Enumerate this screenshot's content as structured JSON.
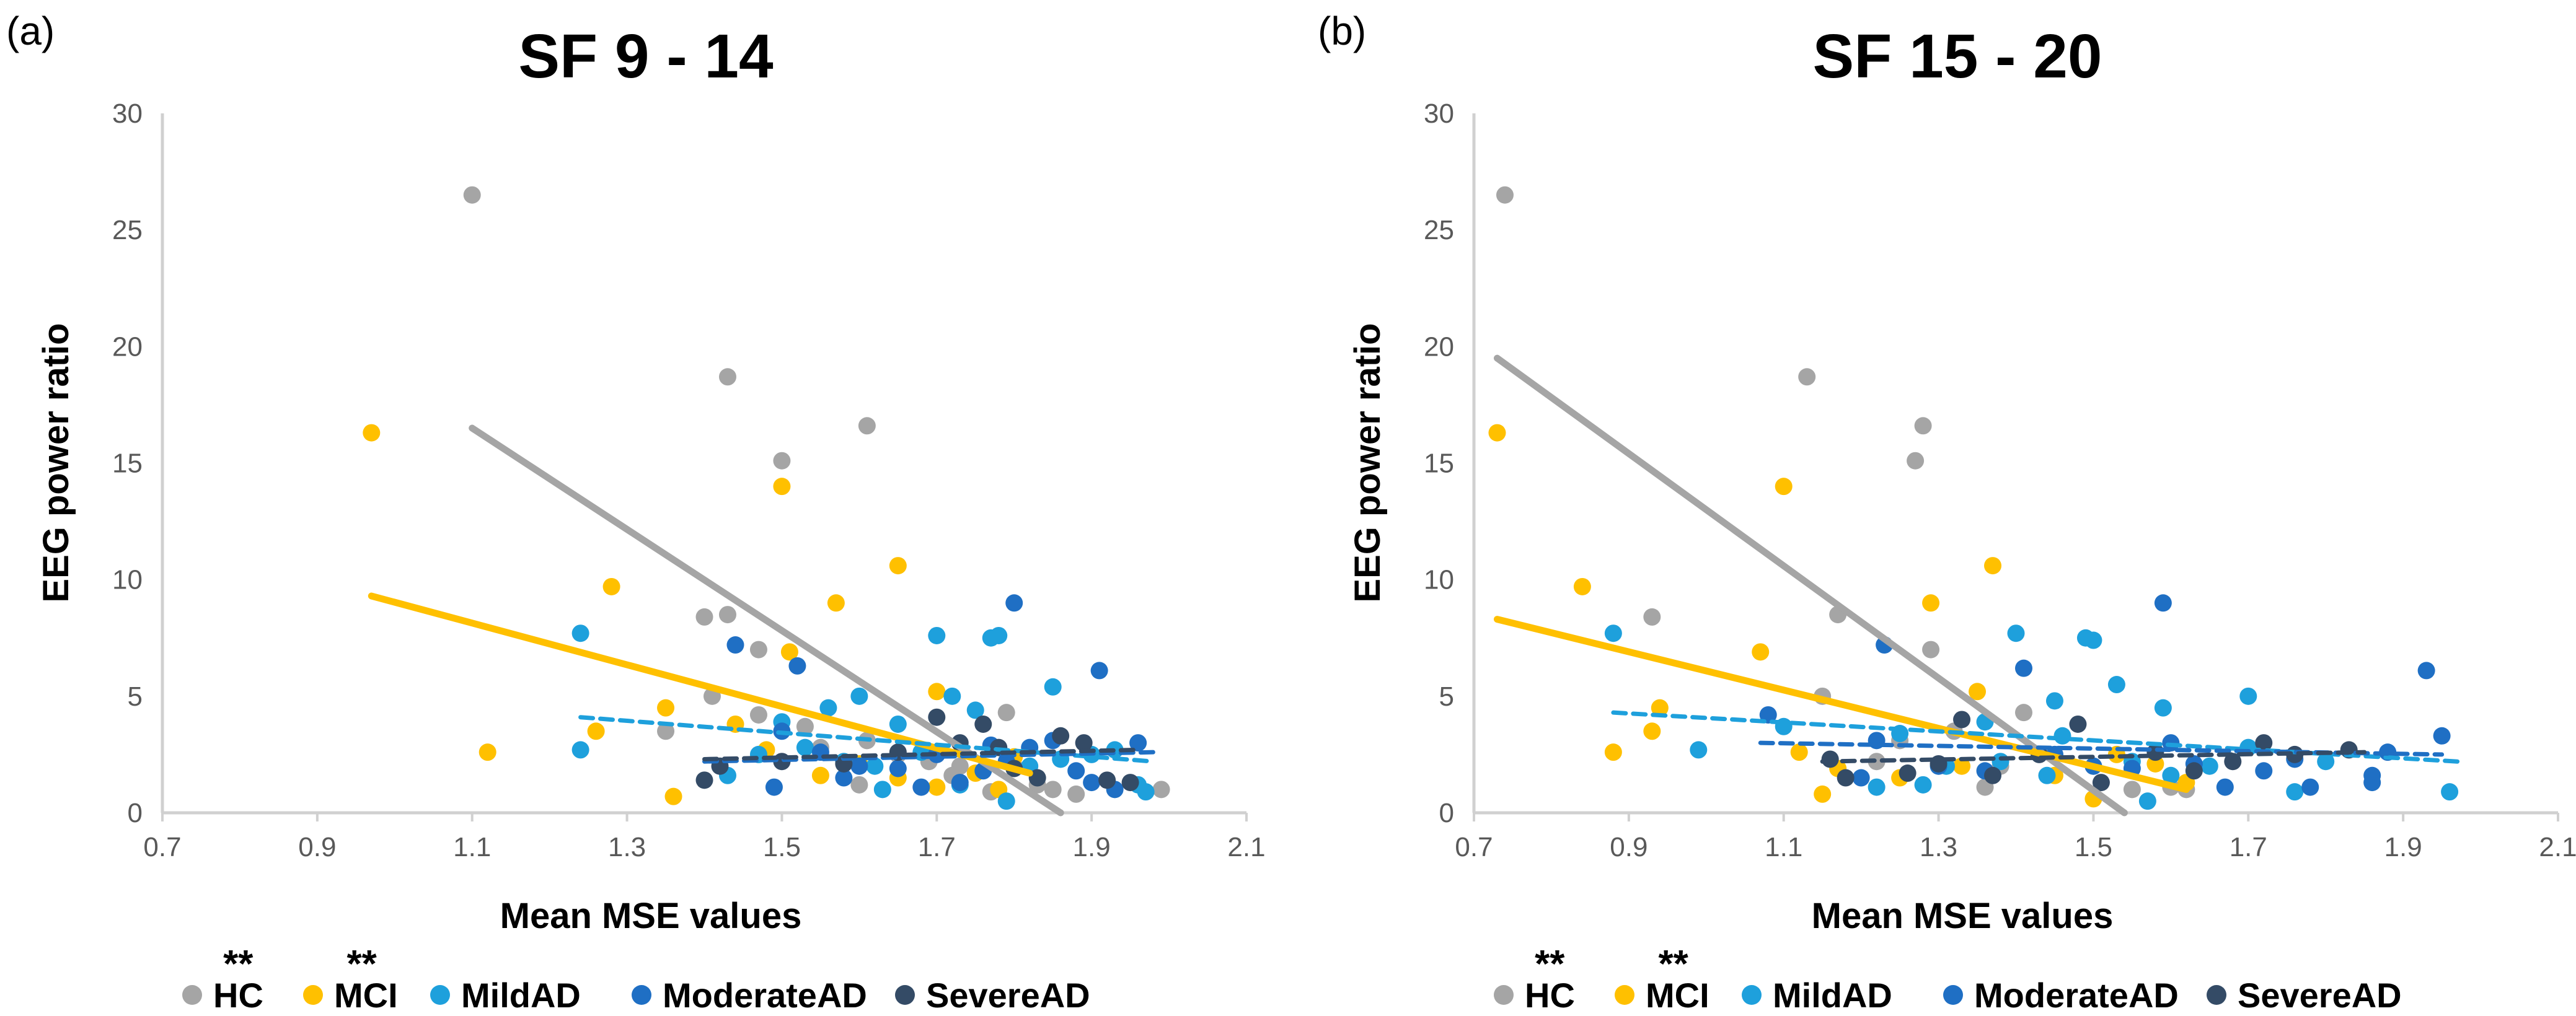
{
  "figure": {
    "significance_mark": "**",
    "legend": [
      {
        "name": "HC",
        "color": "#a5a5a5",
        "significant": true
      },
      {
        "name": "MCI",
        "color": "#ffc000",
        "significant": true
      },
      {
        "name": "MildAD",
        "color": "#1ea0dc",
        "significant": false
      },
      {
        "name": "ModerateAD",
        "color": "#1f6fc4",
        "significant": false
      },
      {
        "name": "SevereAD",
        "color": "#344b66",
        "significant": false
      }
    ]
  },
  "chart_data": [
    {
      "type": "scatter",
      "panel_label": "(a)",
      "title": "SF 9 - 14",
      "xlabel": "Mean MSE values",
      "ylabel": "EEG power ratio",
      "xlim": [
        0.7,
        2.1
      ],
      "ylim": [
        0,
        30
      ],
      "xticks": [
        "0.7",
        "0.9",
        "1.1",
        "1.3",
        "1.5",
        "1.7",
        "1.9",
        "2.1"
      ],
      "yticks": [
        "0",
        "5",
        "10",
        "15",
        "20",
        "25",
        "30"
      ],
      "series": [
        {
          "name": "HC",
          "color": "#a5a5a5",
          "points": [
            [
              1.1,
              26.5
            ],
            [
              1.43,
              18.7
            ],
            [
              1.5,
              15.1
            ],
            [
              1.61,
              16.6
            ],
            [
              1.4,
              8.4
            ],
            [
              1.43,
              8.5
            ],
            [
              1.47,
              7.0
            ],
            [
              1.41,
              5.0
            ],
            [
              1.35,
              3.5
            ],
            [
              1.47,
              4.2
            ],
            [
              1.53,
              3.7
            ],
            [
              1.55,
              2.8
            ],
            [
              1.61,
              3.1
            ],
            [
              1.65,
              2.5
            ],
            [
              1.69,
              2.2
            ],
            [
              1.73,
              2.0
            ],
            [
              1.77,
              0.9
            ],
            [
              1.79,
              4.3
            ],
            [
              1.8,
              2.0
            ],
            [
              1.83,
              1.2
            ],
            [
              1.85,
              1.0
            ],
            [
              1.88,
              0.8
            ],
            [
              1.99,
              1.0
            ],
            [
              1.6,
              1.2
            ],
            [
              1.72,
              1.6
            ]
          ],
          "trend": {
            "x1": 1.1,
            "y1": 16.5,
            "x2": 1.86,
            "y2": 0.0
          }
        },
        {
          "name": "MCI",
          "color": "#ffc000",
          "points": [
            [
              0.97,
              16.3
            ],
            [
              1.5,
              14.0
            ],
            [
              1.65,
              10.6
            ],
            [
              1.28,
              9.7
            ],
            [
              1.57,
              9.0
            ],
            [
              1.51,
              6.9
            ],
            [
              1.7,
              5.2
            ],
            [
              1.12,
              2.6
            ],
            [
              1.26,
              3.5
            ],
            [
              1.35,
              4.5
            ],
            [
              1.44,
              3.8
            ],
            [
              1.48,
              2.7
            ],
            [
              1.55,
              1.6
            ],
            [
              1.6,
              2.1
            ],
            [
              1.65,
              1.5
            ],
            [
              1.7,
              1.1
            ],
            [
              1.75,
              1.7
            ],
            [
              1.8,
              2.4
            ],
            [
              1.36,
              0.7
            ],
            [
              1.78,
              1.0
            ]
          ],
          "trend": {
            "x1": 0.97,
            "y1": 9.3,
            "x2": 1.82,
            "y2": 1.7
          }
        },
        {
          "name": "MildAD",
          "color": "#1ea0dc",
          "points": [
            [
              1.24,
              7.7
            ],
            [
              1.24,
              2.7
            ],
            [
              1.5,
              3.9
            ],
            [
              1.56,
              4.5
            ],
            [
              1.6,
              5.0
            ],
            [
              1.65,
              3.8
            ],
            [
              1.7,
              7.6
            ],
            [
              1.72,
              5.0
            ],
            [
              1.75,
              4.4
            ],
            [
              1.77,
              7.5
            ],
            [
              1.78,
              7.6
            ],
            [
              1.85,
              5.4
            ],
            [
              1.43,
              1.6
            ],
            [
              1.47,
              2.5
            ],
            [
              1.53,
              2.8
            ],
            [
              1.58,
              2.2
            ],
            [
              1.62,
              2.0
            ],
            [
              1.68,
              2.6
            ],
            [
              1.73,
              1.2
            ],
            [
              1.79,
              0.5
            ],
            [
              1.82,
              2.0
            ],
            [
              1.86,
              2.3
            ],
            [
              1.9,
              2.5
            ],
            [
              1.93,
              2.7
            ],
            [
              1.96,
              1.2
            ],
            [
              1.97,
              0.9
            ],
            [
              1.63,
              1.0
            ]
          ],
          "trend": {
            "x1": 1.24,
            "y1": 4.1,
            "x2": 1.98,
            "y2": 2.2
          },
          "dashed": true
        },
        {
          "name": "ModerateAD",
          "color": "#1f6fc4",
          "points": [
            [
              1.8,
              9.0
            ],
            [
              1.44,
              7.2
            ],
            [
              1.52,
              6.3
            ],
            [
              1.91,
              6.1
            ],
            [
              1.5,
              3.5
            ],
            [
              1.55,
              2.6
            ],
            [
              1.6,
              2.0
            ],
            [
              1.65,
              1.9
            ],
            [
              1.7,
              2.5
            ],
            [
              1.73,
              1.3
            ],
            [
              1.76,
              1.8
            ],
            [
              1.79,
              2.2
            ],
            [
              1.82,
              2.8
            ],
            [
              1.85,
              3.1
            ],
            [
              1.88,
              1.8
            ],
            [
              1.9,
              1.3
            ],
            [
              1.93,
              1.0
            ],
            [
              1.96,
              3.0
            ],
            [
              1.58,
              1.5
            ],
            [
              1.68,
              1.1
            ],
            [
              1.77,
              2.9
            ],
            [
              1.49,
              1.1
            ]
          ],
          "trend": {
            "x1": 1.4,
            "y1": 2.2,
            "x2": 1.98,
            "y2": 2.6
          },
          "dashed": true
        },
        {
          "name": "SevereAD",
          "color": "#344b66",
          "points": [
            [
              1.42,
              2.0
            ],
            [
              1.5,
              2.2
            ],
            [
              1.58,
              2.1
            ],
            [
              1.65,
              2.6
            ],
            [
              1.7,
              4.1
            ],
            [
              1.73,
              3.0
            ],
            [
              1.76,
              3.8
            ],
            [
              1.78,
              2.8
            ],
            [
              1.8,
              1.9
            ],
            [
              1.83,
              1.5
            ],
            [
              1.86,
              3.3
            ],
            [
              1.89,
              3.0
            ],
            [
              1.92,
              1.4
            ],
            [
              1.95,
              1.3
            ],
            [
              1.4,
              1.4
            ]
          ],
          "trend": {
            "x1": 1.4,
            "y1": 2.3,
            "x2": 1.96,
            "y2": 2.7
          },
          "dashed": true
        }
      ]
    },
    {
      "type": "scatter",
      "panel_label": "(b)",
      "title": "SF 15 - 20",
      "xlabel": "Mean MSE values",
      "ylabel": "EEG power ratio",
      "xlim": [
        0.7,
        2.1
      ],
      "ylim": [
        0,
        30
      ],
      "xticks": [
        "0.7",
        "0.9",
        "1.1",
        "1.3",
        "1.5",
        "1.7",
        "1.9",
        "2.1"
      ],
      "yticks": [
        "0",
        "5",
        "10",
        "15",
        "20",
        "25",
        "30"
      ],
      "series": [
        {
          "name": "HC",
          "color": "#a5a5a5",
          "points": [
            [
              0.74,
              26.5
            ],
            [
              1.13,
              18.7
            ],
            [
              1.28,
              16.6
            ],
            [
              1.27,
              15.1
            ],
            [
              0.93,
              8.4
            ],
            [
              1.17,
              8.5
            ],
            [
              1.29,
              7.0
            ],
            [
              1.15,
              5.0
            ],
            [
              1.41,
              4.3
            ],
            [
              1.32,
              3.5
            ],
            [
              1.25,
              3.1
            ],
            [
              1.36,
              1.1
            ],
            [
              1.45,
              2.5
            ],
            [
              1.5,
              2.0
            ],
            [
              1.55,
              1.0
            ],
            [
              1.6,
              1.1
            ],
            [
              1.62,
              1.0
            ],
            [
              1.22,
              2.2
            ],
            [
              1.38,
              2.0
            ]
          ],
          "trend": {
            "x1": 0.73,
            "y1": 19.5,
            "x2": 1.54,
            "y2": 0.0
          }
        },
        {
          "name": "MCI",
          "color": "#ffc000",
          "points": [
            [
              0.73,
              16.3
            ],
            [
              1.1,
              14.0
            ],
            [
              1.37,
              10.6
            ],
            [
              0.84,
              9.7
            ],
            [
              1.29,
              9.0
            ],
            [
              1.07,
              6.9
            ],
            [
              1.35,
              5.2
            ],
            [
              0.88,
              2.6
            ],
            [
              0.94,
              4.5
            ],
            [
              0.93,
              3.5
            ],
            [
              1.12,
              2.6
            ],
            [
              1.17,
              1.9
            ],
            [
              1.25,
              1.5
            ],
            [
              1.33,
              2.0
            ],
            [
              1.45,
              1.6
            ],
            [
              1.5,
              0.6
            ],
            [
              1.53,
              2.5
            ],
            [
              1.58,
              2.1
            ],
            [
              1.15,
              0.8
            ],
            [
              1.62,
              1.3
            ]
          ],
          "trend": {
            "x1": 0.73,
            "y1": 8.3,
            "x2": 1.62,
            "y2": 1.0
          }
        },
        {
          "name": "MildAD",
          "color": "#1ea0dc",
          "points": [
            [
              0.88,
              7.7
            ],
            [
              0.99,
              2.7
            ],
            [
              1.4,
              7.7
            ],
            [
              1.49,
              7.5
            ],
            [
              1.5,
              7.4
            ],
            [
              1.53,
              5.5
            ],
            [
              1.59,
              4.5
            ],
            [
              1.7,
              5.0
            ],
            [
              1.45,
              4.8
            ],
            [
              1.36,
              3.9
            ],
            [
              1.25,
              3.4
            ],
            [
              1.31,
              2.0
            ],
            [
              1.38,
              2.2
            ],
            [
              1.44,
              1.6
            ],
            [
              1.46,
              3.3
            ],
            [
              1.55,
              2.2
            ],
            [
              1.57,
              0.5
            ],
            [
              1.6,
              1.6
            ],
            [
              1.65,
              2.0
            ],
            [
              1.7,
              2.8
            ],
            [
              1.76,
              0.9
            ],
            [
              1.8,
              2.2
            ],
            [
              1.96,
              0.9
            ],
            [
              1.22,
              1.1
            ],
            [
              1.1,
              3.7
            ],
            [
              1.28,
              1.2
            ]
          ],
          "trend": {
            "x1": 0.88,
            "y1": 4.3,
            "x2": 1.97,
            "y2": 2.2
          },
          "dashed": true
        },
        {
          "name": "ModerateAD",
          "color": "#1f6fc4",
          "points": [
            [
              1.59,
              9.0
            ],
            [
              1.23,
              7.2
            ],
            [
              1.41,
              6.2
            ],
            [
              1.93,
              6.1
            ],
            [
              1.08,
              4.2
            ],
            [
              1.22,
              3.1
            ],
            [
              1.3,
              2.0
            ],
            [
              1.36,
              1.8
            ],
            [
              1.45,
              2.5
            ],
            [
              1.5,
              2.0
            ],
            [
              1.55,
              1.9
            ],
            [
              1.6,
              3.0
            ],
            [
              1.63,
              2.1
            ],
            [
              1.67,
              1.1
            ],
            [
              1.72,
              1.8
            ],
            [
              1.76,
              2.3
            ],
            [
              1.78,
              1.1
            ],
            [
              1.86,
              1.6
            ],
            [
              1.88,
              2.6
            ],
            [
              1.95,
              3.3
            ],
            [
              1.2,
              1.5
            ],
            [
              1.86,
              1.3
            ]
          ],
          "trend": {
            "x1": 1.07,
            "y1": 3.0,
            "x2": 1.95,
            "y2": 2.5
          },
          "dashed": true
        },
        {
          "name": "SevereAD",
          "color": "#344b66",
          "points": [
            [
              1.33,
              4.0
            ],
            [
              1.48,
              3.8
            ],
            [
              1.16,
              2.3
            ],
            [
              1.26,
              1.7
            ],
            [
              1.3,
              2.1
            ],
            [
              1.37,
              1.6
            ],
            [
              1.43,
              2.5
            ],
            [
              1.51,
              1.3
            ],
            [
              1.58,
              2.6
            ],
            [
              1.63,
              1.8
            ],
            [
              1.68,
              2.2
            ],
            [
              1.72,
              3.0
            ],
            [
              1.76,
              2.5
            ],
            [
              1.83,
              2.7
            ],
            [
              1.18,
              1.5
            ]
          ],
          "trend": {
            "x1": 1.15,
            "y1": 2.2,
            "x2": 1.85,
            "y2": 2.6
          },
          "dashed": true
        }
      ]
    }
  ]
}
